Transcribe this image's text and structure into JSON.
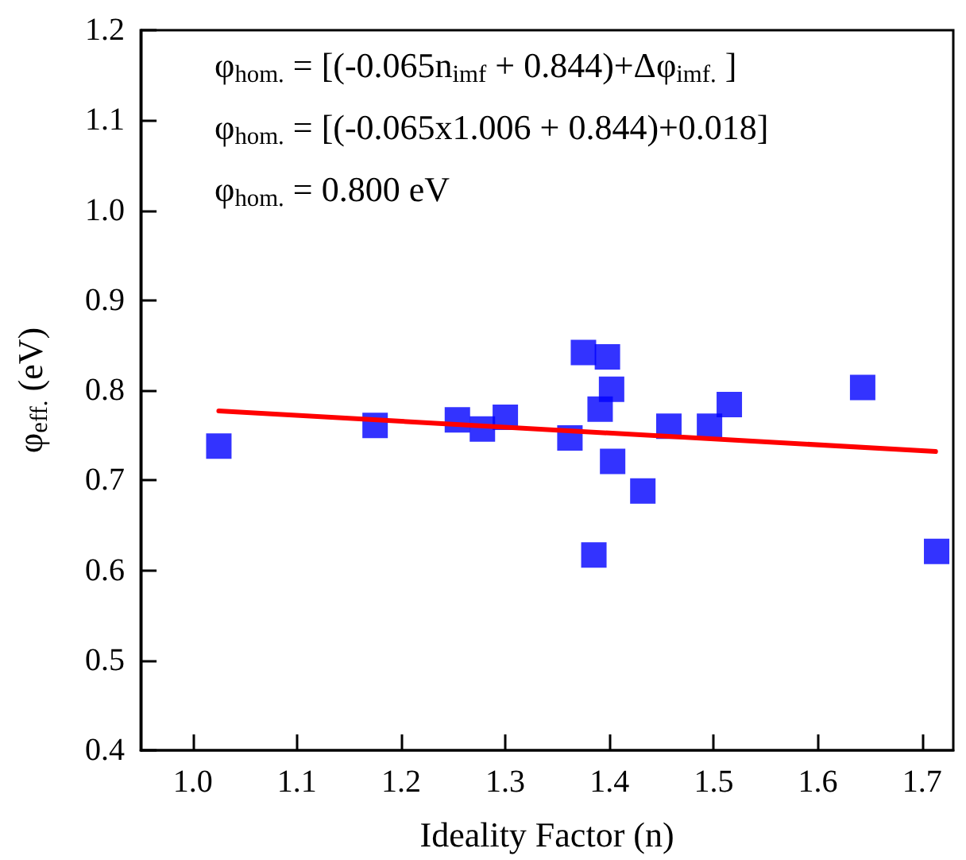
{
  "chart_data": {
    "type": "scatter",
    "xlabel": "Ideality Factor (n)",
    "ylabel": "φ$_{eff.}$ (eV)",
    "annotations": [
      "φ$_{hom.}$ = [(-0.065n$_{imf}$ + 0.844)+Δφ$_{imf.}$ ]",
      "φ$_{hom.}$ = [(-0.065x1.006 + 0.844)+0.018]",
      "φ$_{hom.}$ = 0.800 eV"
    ],
    "xlim": [
      0.95,
      1.73
    ],
    "ylim": [
      0.4,
      1.2
    ],
    "xticks": [
      {
        "value": 1.0,
        "label": "1.0"
      },
      {
        "value": 1.1,
        "label": "1.1"
      },
      {
        "value": 1.2,
        "label": "1.2"
      },
      {
        "value": 1.3,
        "label": "1.3"
      },
      {
        "value": 1.4,
        "label": "1.4"
      },
      {
        "value": 1.5,
        "label": "1.5"
      },
      {
        "value": 1.6,
        "label": "1.6"
      },
      {
        "value": 1.7,
        "label": "1.7"
      }
    ],
    "yticks": [
      {
        "value": 0.4,
        "label": "0.4"
      },
      {
        "value": 0.5,
        "label": "0.5"
      },
      {
        "value": 0.6,
        "label": "0.6"
      },
      {
        "value": 0.7,
        "label": "0.7"
      },
      {
        "value": 0.8,
        "label": "0.8"
      },
      {
        "value": 0.9,
        "label": "0.9"
      },
      {
        "value": 1.0,
        "label": "1.0"
      },
      {
        "value": 1.1,
        "label": "1.1"
      },
      {
        "value": 1.2,
        "label": "1.2"
      }
    ],
    "grid": false,
    "series": [
      {
        "color": "#0000ff",
        "marker": "square",
        "x": [
          1.025,
          1.175,
          1.254,
          1.278,
          1.3,
          1.362,
          1.375,
          1.398,
          1.402,
          1.391,
          1.403,
          1.432,
          1.385,
          1.457,
          1.496,
          1.515,
          1.643,
          1.714
        ],
        "values": [
          0.738,
          0.761,
          0.767,
          0.757,
          0.77,
          0.747,
          0.842,
          0.837,
          0.801,
          0.779,
          0.721,
          0.688,
          0.617,
          0.76,
          0.76,
          0.784,
          0.803,
          0.621
        ]
      },
      {
        "type": "line",
        "color": "#ff0000",
        "marker": "none",
        "line_style": "solid",
        "x": [
          1.025,
          1.713
        ],
        "values": [
          0.777,
          0.732
        ]
      }
    ]
  }
}
